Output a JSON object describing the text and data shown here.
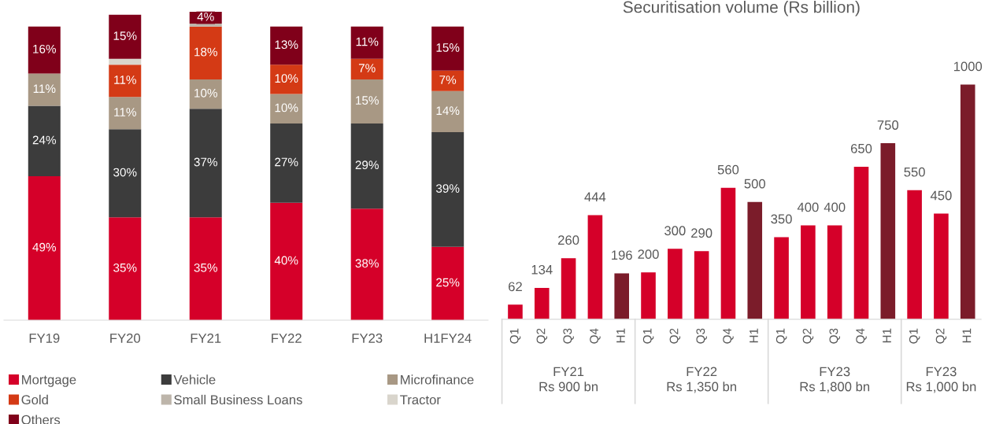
{
  "chart_data": [
    {
      "type": "bar",
      "stacked": true,
      "categories": [
        "FY19",
        "FY20",
        "FY21",
        "FY22",
        "FY23",
        "H1FY24"
      ],
      "legend": "bottom",
      "series": [
        {
          "name": "Mortgage",
          "color": "#d50029",
          "values": [
            49,
            35,
            35,
            40,
            38,
            25
          ],
          "value_labels": [
            "49%",
            "35%",
            "35%",
            "40%",
            "38%",
            "25%"
          ]
        },
        {
          "name": "Vehicle",
          "color": "#3c3c3c",
          "values": [
            24,
            30,
            37,
            27,
            29,
            39
          ],
          "value_labels": [
            "24%",
            "30%",
            "37%",
            "27%",
            "29%",
            "39%"
          ]
        },
        {
          "name": "Microfinance",
          "color": "#a89884",
          "values": [
            11,
            11,
            10,
            10,
            15,
            14
          ],
          "value_labels": [
            "11%",
            "11%",
            "10%",
            "10%",
            "15%",
            "14%"
          ]
        },
        {
          "name": "Gold",
          "color": "#d43a15",
          "values": [
            0,
            11,
            18,
            10,
            7,
            7
          ],
          "value_labels": [
            null,
            "11%",
            "18%",
            "10%",
            "7%",
            "7%"
          ]
        },
        {
          "name": "Small Business Loans",
          "color": "#bdb5aa",
          "values": [
            0,
            0,
            1,
            0,
            0,
            0
          ],
          "value_labels": [
            null,
            null,
            null,
            null,
            null,
            null
          ]
        },
        {
          "name": "Tractor",
          "color": "#d9d5cc",
          "values": [
            0,
            2,
            0,
            0,
            0,
            0
          ],
          "value_labels": [
            null,
            null,
            null,
            null,
            null,
            null
          ]
        },
        {
          "name": "Others",
          "color": "#80001a",
          "values": [
            16,
            15,
            4,
            13,
            11,
            15
          ],
          "value_labels": [
            "16%",
            "15%",
            "4%",
            "13%",
            "11%",
            "15%"
          ]
        }
      ]
    },
    {
      "type": "bar",
      "title": "Securitisation volume (Rs billion)",
      "data_labels": true,
      "categories": [
        "Q1",
        "Q2",
        "Q3",
        "Q4",
        "H1",
        "Q1",
        "Q2",
        "Q3",
        "Q4",
        "H1",
        "Q1",
        "Q2",
        "Q3",
        "Q4",
        "H1",
        "Q1",
        "Q2",
        "H1"
      ],
      "values": [
        62,
        134,
        260,
        444,
        196,
        200,
        300,
        290,
        560,
        500,
        350,
        400,
        400,
        650,
        750,
        550,
        450,
        1000
      ],
      "colors": [
        "#d50029",
        "#d50029",
        "#d50029",
        "#d50029",
        "#7b1c2a",
        "#d50029",
        "#d50029",
        "#d50029",
        "#d50029",
        "#7b1c2a",
        "#d50029",
        "#d50029",
        "#d50029",
        "#d50029",
        "#7b1c2a",
        "#d50029",
        "#d50029",
        "#7b1c2a"
      ],
      "annotations": [
        "FY21\nRs 900 bn",
        "FY22\nRs 1,350 bn",
        "FY23\nRs 1,800 bn",
        "FY23\nRs 1,000 bn"
      ]
    }
  ]
}
